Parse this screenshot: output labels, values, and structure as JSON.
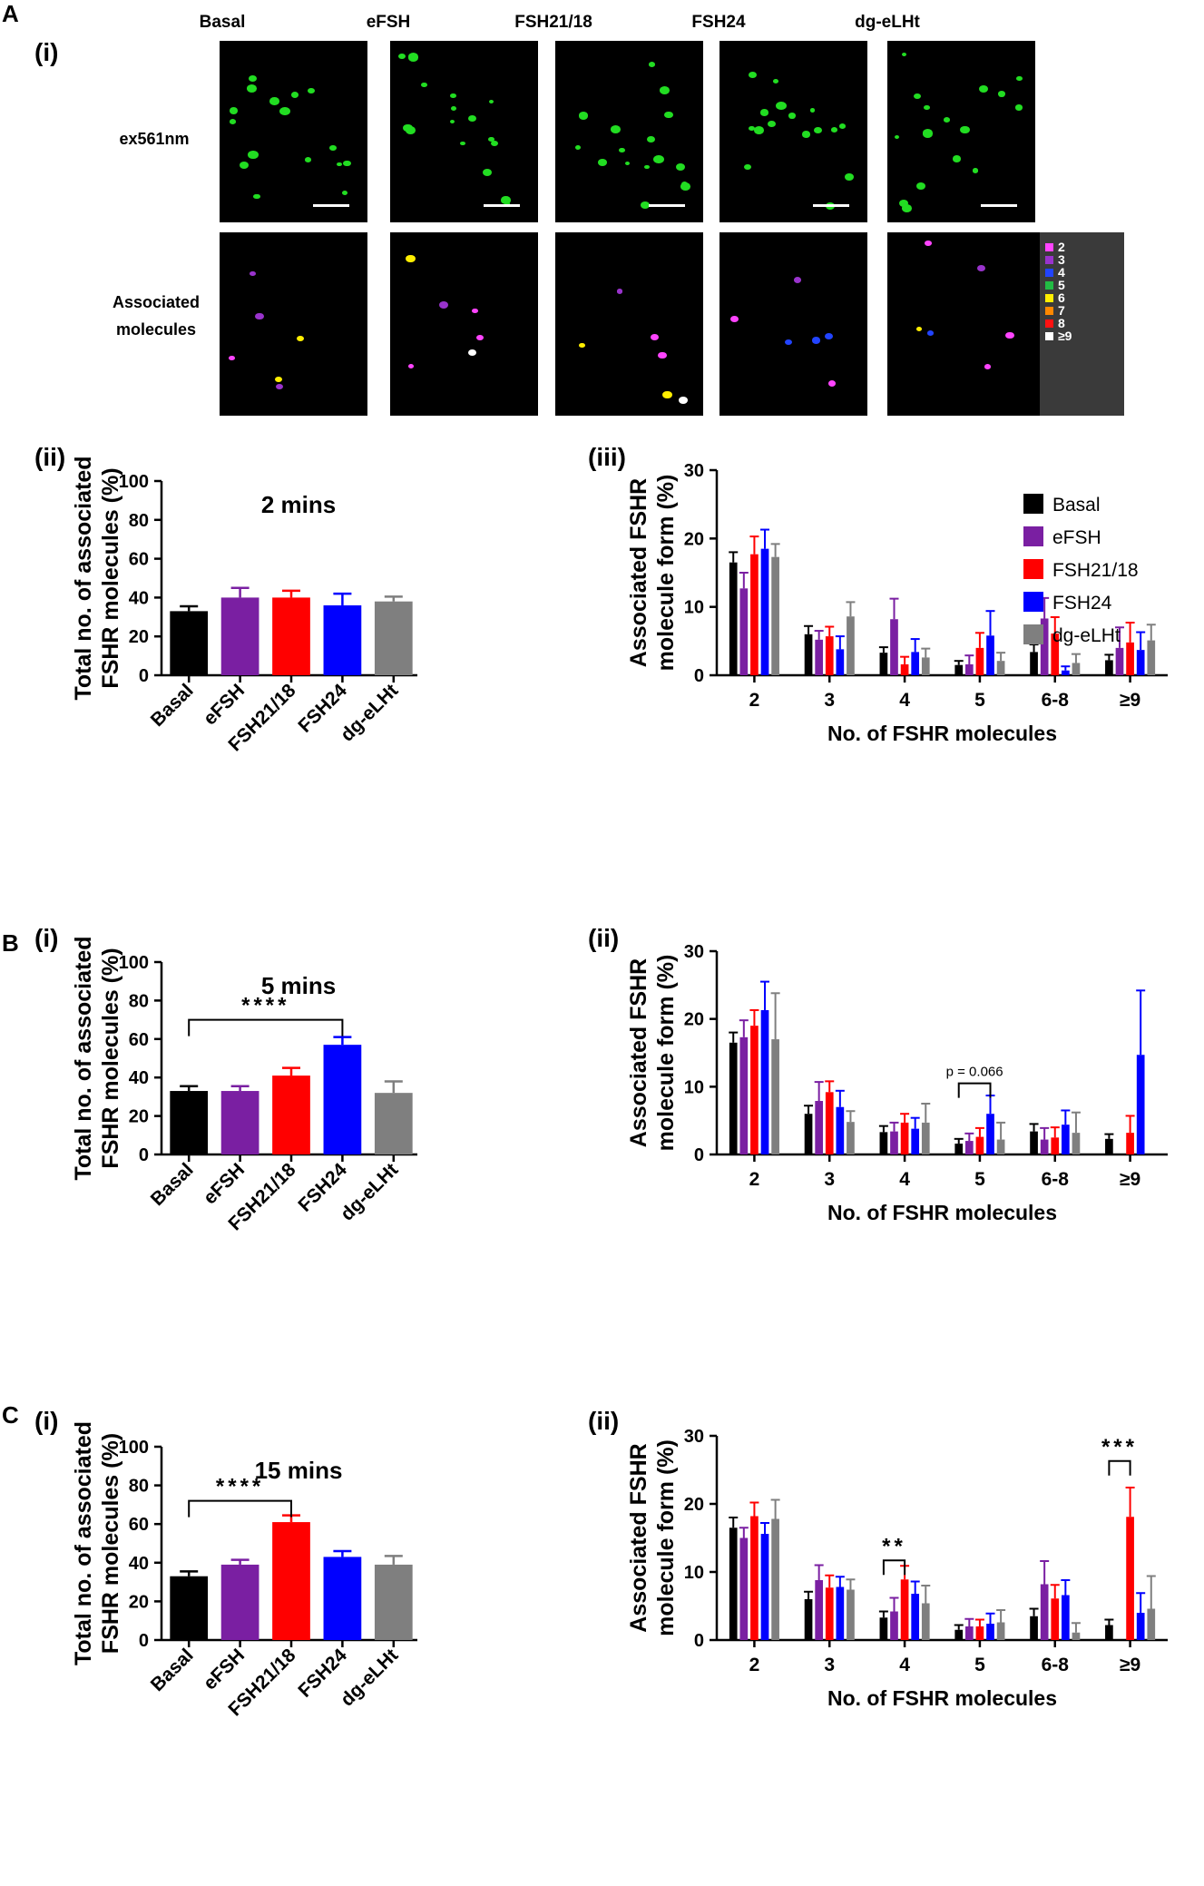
{
  "panels": {
    "A": "A",
    "B": "B",
    "C": "C",
    "A_i": "(i)",
    "A_ii": "(ii)",
    "A_iii": "(iii)",
    "B_i": "(i)",
    "B_ii": "(ii)",
    "C_i": "(i)",
    "C_ii": "(ii)"
  },
  "micrograph": {
    "columns": [
      "Basal",
      "eFSH",
      "FSH21/18",
      "FSH24",
      "dg-eLHt"
    ],
    "row1_label": "ex561nm",
    "row2_label_line1": "Associated",
    "row2_label_line2": "molecules",
    "legend": [
      {
        "label": "2",
        "color": "#ff44ff"
      },
      {
        "label": "3",
        "color": "#9933cc"
      },
      {
        "label": "4",
        "color": "#2244ff"
      },
      {
        "label": "5",
        "color": "#22bb44"
      },
      {
        "label": "6",
        "color": "#ffee00"
      },
      {
        "label": "7",
        "color": "#ff8800"
      },
      {
        "label": "8",
        "color": "#ff1111"
      },
      {
        "label": "≥9",
        "color": "#ffffff"
      }
    ]
  },
  "colors": {
    "Basal": "#000000",
    "eFSH": "#7a1fa2",
    "FSH21/18": "#ff0000",
    "FSH24": "#0000ff",
    "dg-eLHt": "#7f7f7f"
  },
  "chart_data": [
    {
      "id": "A-ii",
      "type": "bar",
      "title": "2 mins",
      "ylabel_line1": "Total no. of associated",
      "ylabel_line2": "FSHR molecules (%)",
      "categories": [
        "Basal",
        "eFSH",
        "FSH21/18",
        "FSH24",
        "dg-eLHt"
      ],
      "values": [
        33,
        40,
        40,
        36,
        38
      ],
      "errors": [
        2.5,
        5,
        3.5,
        6,
        2.5
      ],
      "ylim": [
        0,
        100
      ],
      "yticks": [
        0,
        20,
        40,
        60,
        80,
        100
      ],
      "significance": []
    },
    {
      "id": "A-iii",
      "type": "bar",
      "ylabel_line1": "Associated FSHR",
      "ylabel_line2": "molecule form (%)",
      "xlabel": "No. of FSHR molecules",
      "categories": [
        "2",
        "3",
        "4",
        "5",
        "6-8",
        "≥9"
      ],
      "ylim": [
        0,
        30
      ],
      "yticks": [
        0,
        10,
        20,
        30
      ],
      "legend": [
        "Basal",
        "eFSH",
        "FSH21/18",
        "FSH24",
        "dg-eLHt"
      ],
      "series": [
        {
          "name": "Basal",
          "values": [
            16.5,
            6,
            3.3,
            1.5,
            3.4,
            2.2
          ],
          "errors": [
            1.5,
            1.2,
            0.8,
            0.6,
            1.1,
            0.8
          ]
        },
        {
          "name": "eFSH",
          "values": [
            12.7,
            5.2,
            8.2,
            1.6,
            8.3,
            4
          ],
          "errors": [
            2.3,
            1.3,
            3,
            1.3,
            3,
            3
          ]
        },
        {
          "name": "FSH21/18",
          "values": [
            17.7,
            5.7,
            1.6,
            4,
            6.1,
            4.8
          ],
          "errors": [
            2.6,
            1.4,
            1.1,
            2.2,
            2.4,
            2.9
          ]
        },
        {
          "name": "FSH24",
          "values": [
            18.5,
            3.8,
            3.4,
            5.8,
            0.7,
            3.7
          ],
          "errors": [
            2.8,
            1.9,
            1.9,
            3.6,
            0.6,
            2.6
          ]
        },
        {
          "name": "dg-eLHt",
          "values": [
            17.3,
            8.6,
            2.6,
            2.1,
            1.8,
            5.1
          ],
          "errors": [
            1.9,
            2.1,
            1.3,
            1.2,
            1.3,
            2.3
          ]
        }
      ],
      "significance": []
    },
    {
      "id": "B-i",
      "type": "bar",
      "title": "5 mins",
      "ylabel_line1": "Total no. of associated",
      "ylabel_line2": "FSHR molecules (%)",
      "categories": [
        "Basal",
        "eFSH",
        "FSH21/18",
        "FSH24",
        "dg-eLHt"
      ],
      "values": [
        33,
        33,
        41,
        57,
        32
      ],
      "errors": [
        2.5,
        2.5,
        4,
        4,
        6
      ],
      "ylim": [
        0,
        100
      ],
      "yticks": [
        0,
        20,
        40,
        60,
        80,
        100
      ],
      "significance": [
        {
          "from": 0,
          "to": 3,
          "label": "****",
          "y": 70
        }
      ]
    },
    {
      "id": "B-ii",
      "type": "bar",
      "ylabel_line1": "Associated FSHR",
      "ylabel_line2": "molecule form (%)",
      "xlabel": "No. of FSHR molecules",
      "categories": [
        "2",
        "3",
        "4",
        "5",
        "6-8",
        "≥9"
      ],
      "ylim": [
        0,
        30
      ],
      "yticks": [
        0,
        10,
        20,
        30
      ],
      "series": [
        {
          "name": "Basal",
          "values": [
            16.5,
            6,
            3.3,
            1.6,
            3.4,
            2.3
          ],
          "errors": [
            1.5,
            1.2,
            0.9,
            0.7,
            1.1,
            0.7
          ]
        },
        {
          "name": "eFSH",
          "values": [
            17.3,
            7.9,
            3.4,
            2,
            2.2,
            0
          ],
          "errors": [
            2.5,
            2.8,
            1.3,
            1.1,
            1.7,
            0
          ]
        },
        {
          "name": "FSH21/18",
          "values": [
            19,
            9.2,
            4.7,
            2.6,
            2.5,
            3.2
          ],
          "errors": [
            2.3,
            1.6,
            1.3,
            1.3,
            1.5,
            2.5
          ]
        },
        {
          "name": "FSH24",
          "values": [
            21.3,
            7,
            3.8,
            6,
            4.4,
            14.7
          ],
          "errors": [
            4.2,
            2.4,
            1.6,
            2.7,
            2.1,
            9.5
          ]
        },
        {
          "name": "dg-eLHt",
          "values": [
            17,
            4.8,
            4.7,
            2.2,
            3.2,
            0
          ],
          "errors": [
            6.8,
            1.6,
            2.8,
            2.5,
            3,
            0
          ]
        }
      ],
      "significance": [
        {
          "group_from": 3,
          "group_to": 3,
          "series_from": 0,
          "series_to": 3,
          "label": "p = 0.066",
          "y": 10.5,
          "italic_p": true
        }
      ]
    },
    {
      "id": "C-i",
      "type": "bar",
      "title": "15 mins",
      "ylabel_line1": "Total no. of associated",
      "ylabel_line2": "FSHR molecules (%)",
      "categories": [
        "Basal",
        "eFSH",
        "FSH21/18",
        "FSH24",
        "dg-eLHt"
      ],
      "values": [
        33,
        39,
        61,
        43,
        39
      ],
      "errors": [
        2.5,
        2.5,
        3.5,
        3,
        4.5
      ],
      "ylim": [
        0,
        100
      ],
      "yticks": [
        0,
        20,
        40,
        60,
        80,
        100
      ],
      "significance": [
        {
          "from": 0,
          "to": 2,
          "label": "****",
          "y": 72
        }
      ]
    },
    {
      "id": "C-ii",
      "type": "bar",
      "ylabel_line1": "Associated FSHR",
      "ylabel_line2": "molecule form (%)",
      "xlabel": "No. of FSHR molecules",
      "categories": [
        "2",
        "3",
        "4",
        "5",
        "6-8",
        "≥9"
      ],
      "ylim": [
        0,
        30
      ],
      "yticks": [
        0,
        10,
        20,
        30
      ],
      "series": [
        {
          "name": "Basal",
          "values": [
            16.5,
            6,
            3.3,
            1.5,
            3.5,
            2.2
          ],
          "errors": [
            1.5,
            1.1,
            0.9,
            0.7,
            1.1,
            0.8
          ]
        },
        {
          "name": "eFSH",
          "values": [
            15,
            8.8,
            4.2,
            2,
            8.2,
            0
          ],
          "errors": [
            1.5,
            2.2,
            2,
            1.1,
            3.4,
            0
          ]
        },
        {
          "name": "FSH21/18",
          "values": [
            18.2,
            7.7,
            8.9,
            2,
            6.1,
            18.1
          ],
          "errors": [
            2,
            1.8,
            2,
            1,
            2,
            4.3
          ]
        },
        {
          "name": "FSH24",
          "values": [
            15.6,
            7.8,
            6.8,
            2.4,
            6.6,
            4
          ],
          "errors": [
            1.6,
            1.5,
            1.8,
            1.5,
            2.2,
            2.9
          ]
        },
        {
          "name": "dg-eLHt",
          "values": [
            17.8,
            7.4,
            5.4,
            2.6,
            1.1,
            4.6
          ],
          "errors": [
            2.8,
            1.5,
            2.6,
            1.8,
            1.4,
            4.8
          ]
        }
      ],
      "significance": [
        {
          "group_from": 2,
          "group_to": 2,
          "series_from": 0,
          "series_to": 2,
          "label": "**",
          "y": 11.7
        },
        {
          "group_from": 5,
          "group_to": 5,
          "series_from": 0,
          "series_to": 2,
          "label": "***",
          "y": 26.3
        }
      ]
    }
  ]
}
